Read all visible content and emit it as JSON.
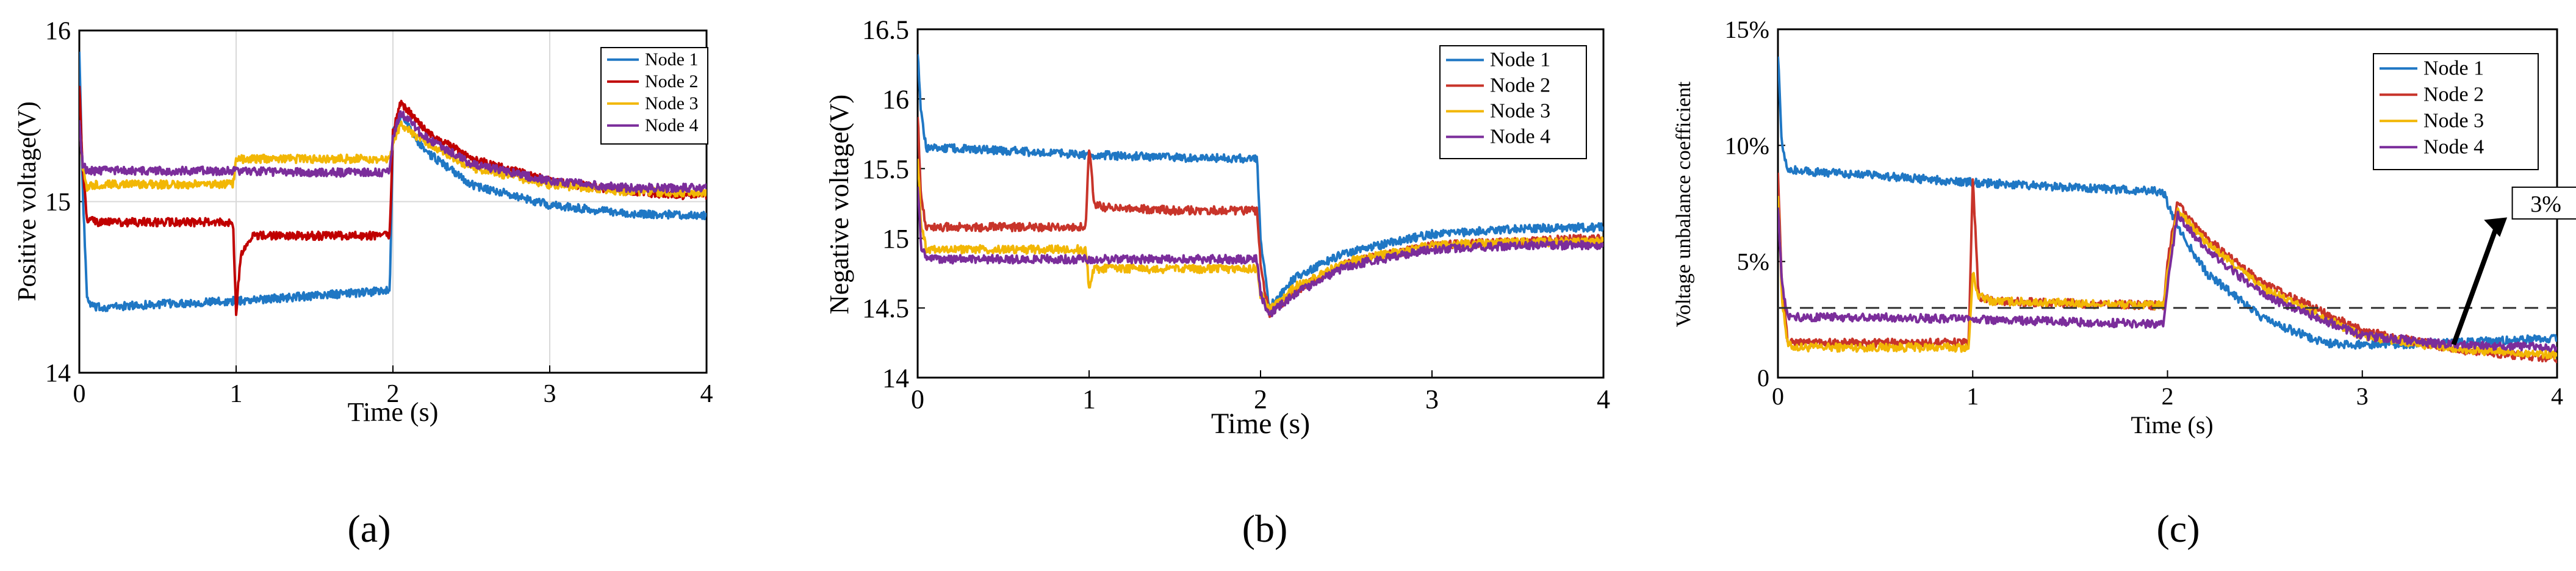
{
  "colors": {
    "node1": "#1f77c4",
    "node2": "#c8342a",
    "node3": "#f2b705",
    "node4": "#7b2d9b",
    "panel_a_node2": "#c00000",
    "axis": "#000000",
    "grid": "#d9d9d9",
    "threshold": "#333333"
  },
  "chart_data": [
    {
      "id": "a",
      "type": "line",
      "panel_label": "(a)",
      "title": "",
      "xlabel": "Time (s)",
      "ylabel": "Positive voltage(V)",
      "xlim": [
        0,
        4
      ],
      "ylim": [
        14,
        16
      ],
      "xticks": [
        "0",
        "1",
        "2",
        "3",
        "4"
      ],
      "yticks": [
        "14",
        "15",
        "16"
      ],
      "grid": true,
      "legend_position": "top-right",
      "series": [
        {
          "name": "Node 1",
          "x": [
            0,
            0.02,
            0.05,
            0.1,
            0.5,
            1.0,
            1.5,
            1.98,
            2.0,
            2.05,
            2.2,
            2.5,
            3.0,
            3.5,
            4.0
          ],
          "y": [
            15.9,
            15.1,
            14.42,
            14.38,
            14.4,
            14.42,
            14.45,
            14.48,
            15.4,
            15.5,
            15.3,
            15.1,
            14.98,
            14.93,
            14.92
          ]
        },
        {
          "name": "Node 2",
          "x": [
            0,
            0.02,
            0.05,
            0.1,
            0.5,
            0.98,
            1.0,
            1.03,
            1.1,
            1.5,
            1.98,
            2.0,
            2.05,
            2.2,
            2.5,
            3.0,
            3.5,
            4.0
          ],
          "y": [
            15.7,
            15.2,
            14.9,
            14.88,
            14.88,
            14.88,
            14.35,
            14.7,
            14.8,
            14.8,
            14.8,
            15.4,
            15.58,
            15.42,
            15.25,
            15.12,
            15.06,
            15.03
          ]
        },
        {
          "name": "Node 3",
          "x": [
            0,
            0.02,
            0.05,
            0.1,
            0.5,
            0.98,
            1.0,
            1.5,
            1.98,
            2.0,
            2.05,
            2.2,
            2.5,
            3.0,
            3.5,
            4.0
          ],
          "y": [
            15.5,
            15.2,
            15.08,
            15.1,
            15.1,
            15.1,
            15.25,
            15.25,
            15.25,
            15.35,
            15.45,
            15.35,
            15.2,
            15.1,
            15.06,
            15.05
          ]
        },
        {
          "name": "Node 4",
          "x": [
            0,
            0.02,
            0.05,
            0.1,
            0.5,
            1.0,
            1.5,
            1.98,
            2.0,
            2.05,
            2.2,
            2.5,
            3.0,
            3.5,
            4.0
          ],
          "y": [
            15.5,
            15.22,
            15.18,
            15.18,
            15.18,
            15.18,
            15.17,
            15.17,
            15.38,
            15.52,
            15.38,
            15.22,
            15.12,
            15.08,
            15.08
          ]
        }
      ]
    },
    {
      "id": "b",
      "type": "line",
      "panel_label": "(b)",
      "title": "",
      "xlabel": "Time (s)",
      "ylabel": "Negative voltage(V)",
      "xlim": [
        0,
        4
      ],
      "ylim": [
        14,
        16.5
      ],
      "xticks": [
        "0",
        "1",
        "2",
        "3",
        "4"
      ],
      "yticks": [
        "14",
        "14.5",
        "15",
        "15.5",
        "16",
        "16.5"
      ],
      "grid": false,
      "legend_position": "top-right",
      "series": [
        {
          "name": "Node 1",
          "x": [
            0,
            0.02,
            0.05,
            0.1,
            0.5,
            1.0,
            1.5,
            1.98,
            2.0,
            2.05,
            2.2,
            2.5,
            3.0,
            3.5,
            4.0
          ],
          "y": [
            16.35,
            15.9,
            15.65,
            15.65,
            15.63,
            15.6,
            15.58,
            15.57,
            15.0,
            14.5,
            14.72,
            14.9,
            15.03,
            15.07,
            15.08
          ]
        },
        {
          "name": "Node 2",
          "x": [
            0,
            0.02,
            0.05,
            0.1,
            0.5,
            0.98,
            1.0,
            1.03,
            1.1,
            1.5,
            1.98,
            2.0,
            2.05,
            2.2,
            2.5,
            3.0,
            3.5,
            4.0
          ],
          "y": [
            15.9,
            15.3,
            15.08,
            15.08,
            15.08,
            15.08,
            15.65,
            15.25,
            15.22,
            15.2,
            15.2,
            14.8,
            14.45,
            14.62,
            14.82,
            14.95,
            14.98,
            15.0
          ]
        },
        {
          "name": "Node 3",
          "x": [
            0,
            0.02,
            0.05,
            0.1,
            0.5,
            0.98,
            1.0,
            1.03,
            1.1,
            1.5,
            1.98,
            2.0,
            2.05,
            2.2,
            2.5,
            3.0,
            3.5,
            4.0
          ],
          "y": [
            15.6,
            15.1,
            14.92,
            14.92,
            14.92,
            14.92,
            14.65,
            14.78,
            14.78,
            14.78,
            14.78,
            14.6,
            14.48,
            14.65,
            14.83,
            14.95,
            14.97,
            14.98
          ]
        },
        {
          "name": "Node 4",
          "x": [
            0,
            0.02,
            0.05,
            0.1,
            0.5,
            1.0,
            1.5,
            1.98,
            2.0,
            2.05,
            2.2,
            2.5,
            3.0,
            3.5,
            4.0
          ],
          "y": [
            15.4,
            14.95,
            14.85,
            14.85,
            14.85,
            14.85,
            14.85,
            14.85,
            14.6,
            14.45,
            14.6,
            14.8,
            14.92,
            14.95,
            14.95
          ]
        }
      ]
    },
    {
      "id": "c",
      "type": "line",
      "panel_label": "(c)",
      "title": "",
      "xlabel": "Time (s)",
      "ylabel": "Voltage unbalance coefficient",
      "xlim": [
        0,
        4
      ],
      "ylim": [
        0,
        15
      ],
      "xticks": [
        "0",
        "1",
        "2",
        "3",
        "4"
      ],
      "yticks": [
        "0",
        "5%",
        "10%",
        "15%"
      ],
      "grid": false,
      "legend_position": "top-right",
      "threshold": {
        "value": 3,
        "label": "3%"
      },
      "series": [
        {
          "name": "Node 1",
          "x": [
            0,
            0.02,
            0.05,
            0.1,
            0.5,
            1.0,
            1.5,
            1.98,
            2.0,
            2.05,
            2.2,
            2.5,
            2.8,
            3.0,
            3.5,
            4.0
          ],
          "y": [
            14,
            10,
            9,
            8.9,
            8.7,
            8.4,
            8.2,
            8.0,
            7.5,
            6.5,
            4.5,
            2.5,
            1.5,
            1.4,
            1.5,
            1.7
          ]
        },
        {
          "name": "Node 2",
          "x": [
            0,
            0.02,
            0.05,
            0.1,
            0.5,
            0.98,
            1.0,
            1.03,
            1.1,
            1.5,
            1.98,
            2.0,
            2.05,
            2.2,
            2.5,
            3.0,
            3.5,
            4.0
          ],
          "y": [
            9,
            4,
            1.6,
            1.5,
            1.5,
            1.5,
            8.7,
            3.5,
            3.3,
            3.2,
            3.1,
            5.0,
            7.5,
            6.0,
            4.0,
            2.0,
            1.2,
            0.8
          ]
        },
        {
          "name": "Node 3",
          "x": [
            0,
            0.02,
            0.05,
            0.1,
            0.5,
            0.98,
            1.0,
            1.03,
            1.1,
            1.5,
            1.98,
            2.0,
            2.05,
            2.2,
            2.5,
            3.0,
            3.5,
            4.0
          ],
          "y": [
            8,
            3.5,
            1.4,
            1.3,
            1.3,
            1.3,
            4.5,
            3.5,
            3.3,
            3.2,
            3.1,
            4.5,
            7.2,
            5.8,
            3.8,
            1.8,
            1.2,
            1.0
          ]
        },
        {
          "name": "Node 4",
          "x": [
            0,
            0.02,
            0.05,
            0.1,
            0.5,
            1.0,
            1.5,
            1.98,
            2.0,
            2.05,
            2.2,
            2.5,
            3.0,
            3.5,
            4.0
          ],
          "y": [
            7.5,
            4,
            2.6,
            2.6,
            2.6,
            2.5,
            2.4,
            2.3,
            4.0,
            7.0,
            5.5,
            3.5,
            1.8,
            1.4,
            1.3
          ]
        }
      ]
    }
  ]
}
